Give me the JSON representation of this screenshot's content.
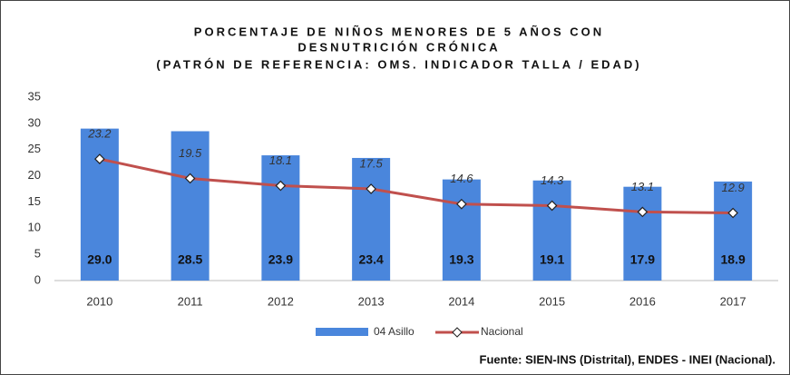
{
  "chart_data": {
    "type": "combo",
    "title": [
      "PORCENTAJE DE NIÑOS MENORES DE 5 AÑOS CON",
      "DESNUTRICIÓN CRÓNICA",
      "(PATRÓN DE REFERENCIA: OMS. INDICADOR TALLA / EDAD)"
    ],
    "source": "Fuente: SIEN-INS (Distrital), ENDES - INEI (Nacional).",
    "categories": [
      "2010",
      "2011",
      "2012",
      "2013",
      "2014",
      "2015",
      "2016",
      "2017"
    ],
    "series": [
      {
        "name": "04 Asillo",
        "type": "bar",
        "color": "#4a86dc",
        "values": [
          29.0,
          28.5,
          23.9,
          23.4,
          19.3,
          19.1,
          17.9,
          18.9
        ],
        "value_labels": [
          "29.0",
          "28.5",
          "23.9",
          "23.4",
          "19.3",
          "19.1",
          "17.9",
          "18.9"
        ]
      },
      {
        "name": "Nacional",
        "type": "line",
        "color": "#c0504d",
        "values": [
          23.2,
          19.5,
          18.1,
          17.5,
          14.6,
          14.3,
          13.1,
          12.9
        ]
      }
    ],
    "ylim": [
      0,
      35
    ],
    "yticks": [
      0,
      5,
      10,
      15,
      20,
      25,
      30,
      35
    ],
    "grid": false,
    "legend": "bottom"
  }
}
